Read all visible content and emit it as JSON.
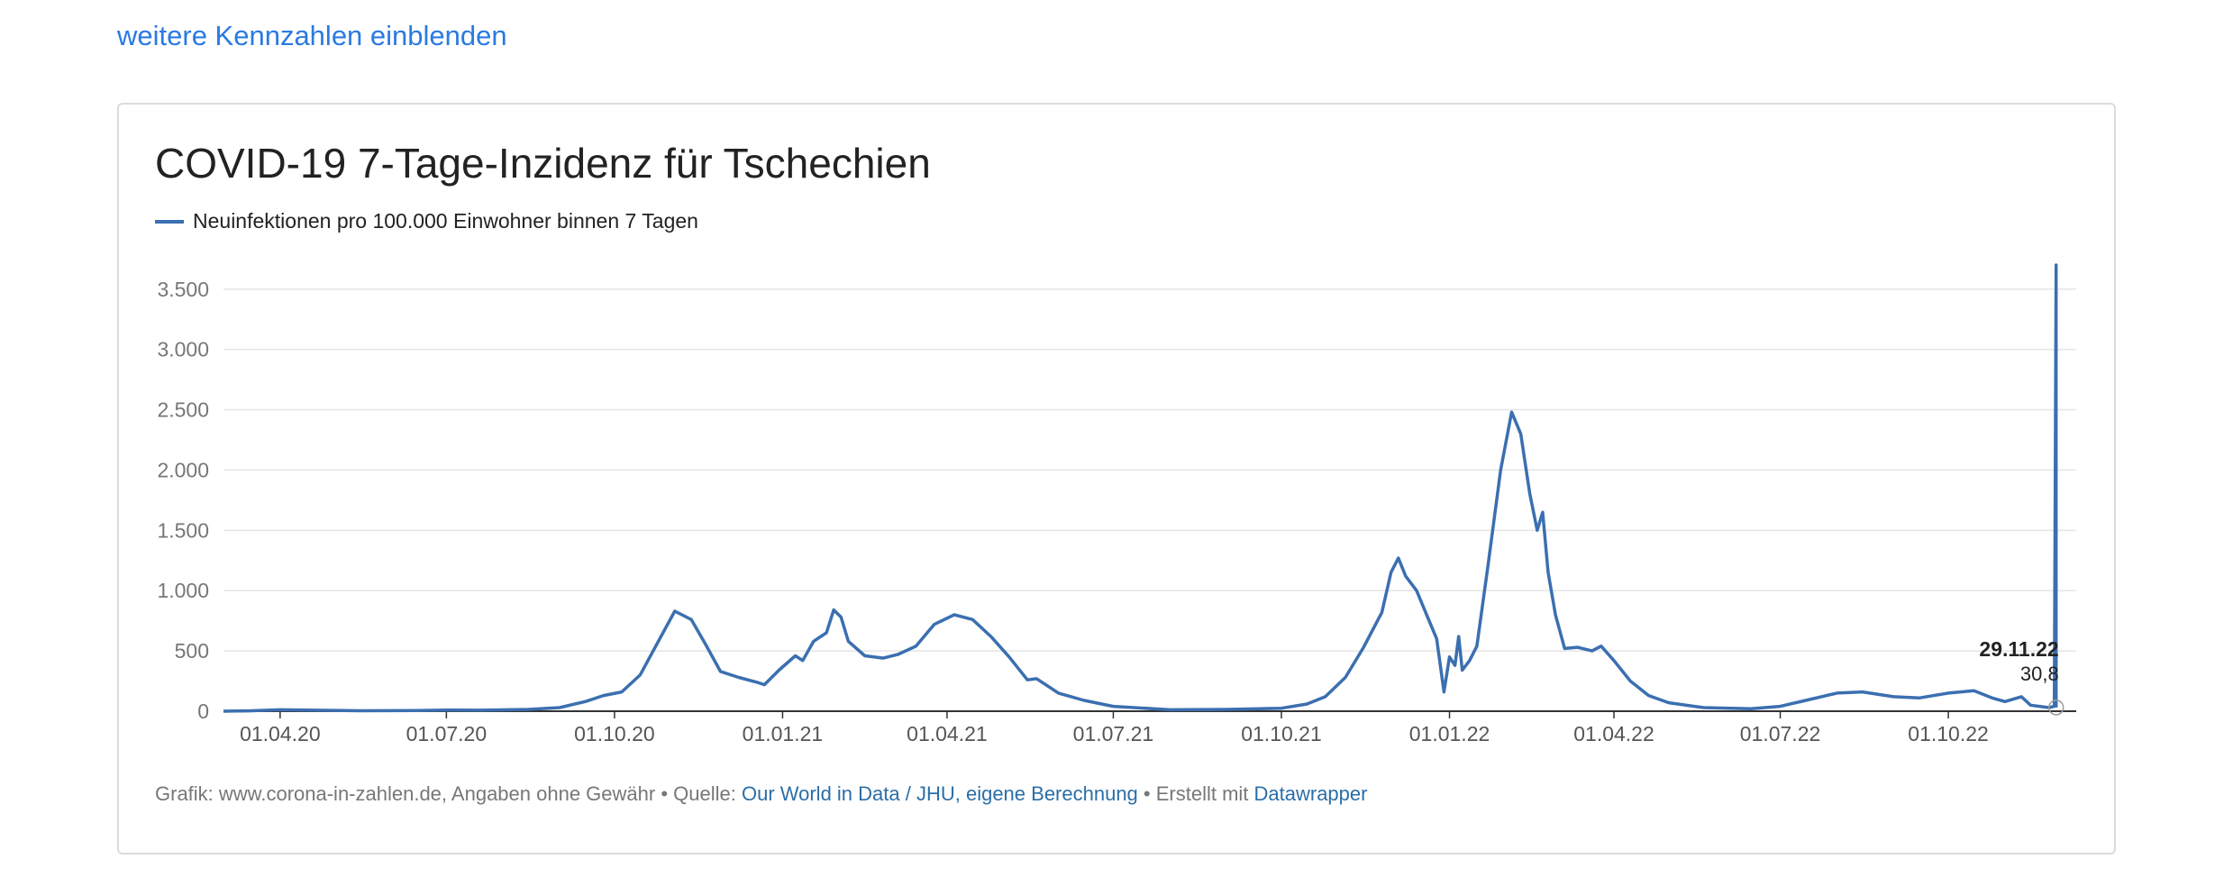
{
  "top_link": "weitere Kennzahlen einblenden",
  "chart_data": {
    "type": "line",
    "title": "COVID-19 7-Tage-Inzidenz für Tschechien",
    "xlabel": "",
    "ylabel": "",
    "ylim": [
      0,
      3700
    ],
    "y_ticks": [
      0,
      500,
      1000,
      1500,
      2000,
      2500,
      3000,
      3500
    ],
    "y_tick_labels": [
      "0",
      "500",
      "1.000",
      "1.500",
      "2.000",
      "2.500",
      "3.000",
      "3.500"
    ],
    "x_ticks": [
      "2020-04-01",
      "2020-07-01",
      "2020-10-01",
      "2021-01-01",
      "2021-04-01",
      "2021-07-01",
      "2021-10-01",
      "2022-01-01",
      "2022-04-01",
      "2022-07-01",
      "2022-10-01"
    ],
    "x_tick_labels": [
      "01.04.20",
      "01.07.20",
      "01.10.20",
      "01.01.21",
      "01.04.21",
      "01.07.21",
      "01.10.21",
      "01.01.22",
      "01.04.22",
      "01.07.22",
      "01.10.22"
    ],
    "grid": true,
    "legend_position": "top-left",
    "colors": {
      "line": "#3b6fb0",
      "grid": "#e5e5e5",
      "axis": "#333333"
    },
    "series": [
      {
        "name": "Neuinfektionen pro 100.000 Einwohner binnen 7 Tagen",
        "points": [
          [
            "2020-03-01",
            0
          ],
          [
            "2020-03-15",
            3
          ],
          [
            "2020-04-01",
            12
          ],
          [
            "2020-04-20",
            8
          ],
          [
            "2020-05-15",
            4
          ],
          [
            "2020-06-15",
            5
          ],
          [
            "2020-07-01",
            10
          ],
          [
            "2020-07-20",
            8
          ],
          [
            "2020-08-15",
            15
          ],
          [
            "2020-09-01",
            30
          ],
          [
            "2020-09-15",
            80
          ],
          [
            "2020-09-25",
            130
          ],
          [
            "2020-10-05",
            160
          ],
          [
            "2020-10-15",
            300
          ],
          [
            "2020-10-25",
            580
          ],
          [
            "2020-11-03",
            830
          ],
          [
            "2020-11-12",
            760
          ],
          [
            "2020-11-20",
            550
          ],
          [
            "2020-11-28",
            330
          ],
          [
            "2020-12-08",
            280
          ],
          [
            "2020-12-18",
            240
          ],
          [
            "2020-12-22",
            220
          ],
          [
            "2020-12-30",
            340
          ],
          [
            "2021-01-08",
            460
          ],
          [
            "2021-01-12",
            420
          ],
          [
            "2021-01-18",
            580
          ],
          [
            "2021-01-25",
            650
          ],
          [
            "2021-01-29",
            840
          ],
          [
            "2021-02-02",
            780
          ],
          [
            "2021-02-06",
            580
          ],
          [
            "2021-02-15",
            460
          ],
          [
            "2021-02-25",
            440
          ],
          [
            "2021-03-05",
            470
          ],
          [
            "2021-03-15",
            540
          ],
          [
            "2021-03-25",
            720
          ],
          [
            "2021-04-05",
            800
          ],
          [
            "2021-04-15",
            760
          ],
          [
            "2021-04-25",
            620
          ],
          [
            "2021-05-05",
            450
          ],
          [
            "2021-05-15",
            260
          ],
          [
            "2021-05-20",
            270
          ],
          [
            "2021-06-01",
            150
          ],
          [
            "2021-06-15",
            90
          ],
          [
            "2021-07-01",
            40
          ],
          [
            "2021-08-01",
            12
          ],
          [
            "2021-09-01",
            15
          ],
          [
            "2021-10-01",
            25
          ],
          [
            "2021-10-15",
            60
          ],
          [
            "2021-10-25",
            120
          ],
          [
            "2021-11-05",
            280
          ],
          [
            "2021-11-15",
            530
          ],
          [
            "2021-11-25",
            820
          ],
          [
            "2021-11-30",
            1150
          ],
          [
            "2021-12-04",
            1270
          ],
          [
            "2021-12-08",
            1120
          ],
          [
            "2021-12-14",
            1000
          ],
          [
            "2021-12-20",
            780
          ],
          [
            "2021-12-25",
            600
          ],
          [
            "2021-12-29",
            160
          ],
          [
            "2022-01-01",
            450
          ],
          [
            "2022-01-04",
            380
          ],
          [
            "2022-01-06",
            620
          ],
          [
            "2022-01-08",
            340
          ],
          [
            "2022-01-12",
            420
          ],
          [
            "2022-01-16",
            540
          ],
          [
            "2022-01-22",
            1200
          ],
          [
            "2022-01-29",
            2000
          ],
          [
            "2022-02-04",
            2480
          ],
          [
            "2022-02-09",
            2300
          ],
          [
            "2022-02-14",
            1800
          ],
          [
            "2022-02-18",
            1500
          ],
          [
            "2022-02-21",
            1650
          ],
          [
            "2022-02-24",
            1150
          ],
          [
            "2022-02-28",
            800
          ],
          [
            "2022-03-05",
            520
          ],
          [
            "2022-03-12",
            530
          ],
          [
            "2022-03-20",
            500
          ],
          [
            "2022-03-25",
            540
          ],
          [
            "2022-04-01",
            420
          ],
          [
            "2022-04-10",
            250
          ],
          [
            "2022-04-20",
            130
          ],
          [
            "2022-05-01",
            70
          ],
          [
            "2022-05-20",
            30
          ],
          [
            "2022-06-15",
            20
          ],
          [
            "2022-07-01",
            40
          ],
          [
            "2022-07-15",
            90
          ],
          [
            "2022-08-01",
            150
          ],
          [
            "2022-08-15",
            160
          ],
          [
            "2022-09-01",
            120
          ],
          [
            "2022-09-15",
            110
          ],
          [
            "2022-10-01",
            150
          ],
          [
            "2022-10-15",
            170
          ],
          [
            "2022-10-25",
            110
          ],
          [
            "2022-11-01",
            80
          ],
          [
            "2022-11-10",
            120
          ],
          [
            "2022-11-15",
            50
          ],
          [
            "2022-11-25",
            30
          ],
          [
            "2022-11-28",
            40
          ],
          [
            "2022-11-29",
            3700
          ],
          [
            "2022-11-29",
            30.8
          ]
        ]
      }
    ],
    "annotation": {
      "date": "29.11.22",
      "value": "30,8"
    }
  },
  "footer": {
    "prefix": "Grafik: www.corona-in-zahlen.de, Angaben ohne Gewähr • Quelle: ",
    "source_link": "Our World in Data / JHU, eigene Berechnung",
    "middle": " • Erstellt mit ",
    "tool_link": "Datawrapper"
  }
}
